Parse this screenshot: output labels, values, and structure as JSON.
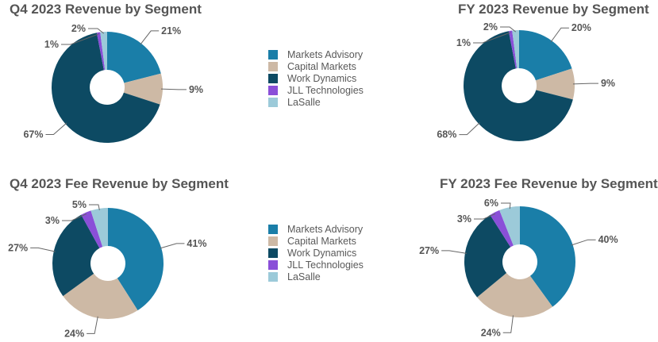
{
  "colors": {
    "Markets Advisory": "#1a7ea8",
    "Capital Markets": "#cdb9a5",
    "Work Dynamics": "#0d4a63",
    "JLL Technologies": "#8a4fd8",
    "LaSalle": "#9ccad9"
  },
  "legend": [
    "Markets Advisory",
    "Capital Markets",
    "Work Dynamics",
    "JLL Technologies",
    "LaSalle"
  ],
  "chart_data": [
    {
      "type": "pie",
      "title": "Q4 2023 Revenue by Segment",
      "categories": [
        "Markets Advisory",
        "Capital Markets",
        "Work Dynamics",
        "JLL Technologies",
        "LaSalle"
      ],
      "values": [
        21,
        9,
        67,
        1,
        2
      ],
      "labels": [
        "21%",
        "9%",
        "67%",
        "1%",
        "2%"
      ]
    },
    {
      "type": "pie",
      "title": "FY 2023 Revenue by Segment",
      "categories": [
        "Markets Advisory",
        "Capital Markets",
        "Work Dynamics",
        "JLL Technologies",
        "LaSalle"
      ],
      "values": [
        20,
        9,
        68,
        1,
        2
      ],
      "labels": [
        "20%",
        "9%",
        "68%",
        "1%",
        "2%"
      ]
    },
    {
      "type": "pie",
      "title": "Q4 2023 Fee Revenue by Segment",
      "categories": [
        "Markets Advisory",
        "Capital Markets",
        "Work Dynamics",
        "JLL Technologies",
        "LaSalle"
      ],
      "values": [
        41,
        24,
        27,
        3,
        5
      ],
      "labels": [
        "41%",
        "24%",
        "27%",
        "3%",
        "5%"
      ]
    },
    {
      "type": "pie",
      "title": "FY 2023 Fee Revenue by Segment",
      "categories": [
        "Markets Advisory",
        "Capital Markets",
        "Work Dynamics",
        "JLL Technologies",
        "LaSalle"
      ],
      "values": [
        40,
        24,
        27,
        3,
        6
      ],
      "labels": [
        "40%",
        "24%",
        "27%",
        "3%",
        "6%"
      ]
    }
  ]
}
